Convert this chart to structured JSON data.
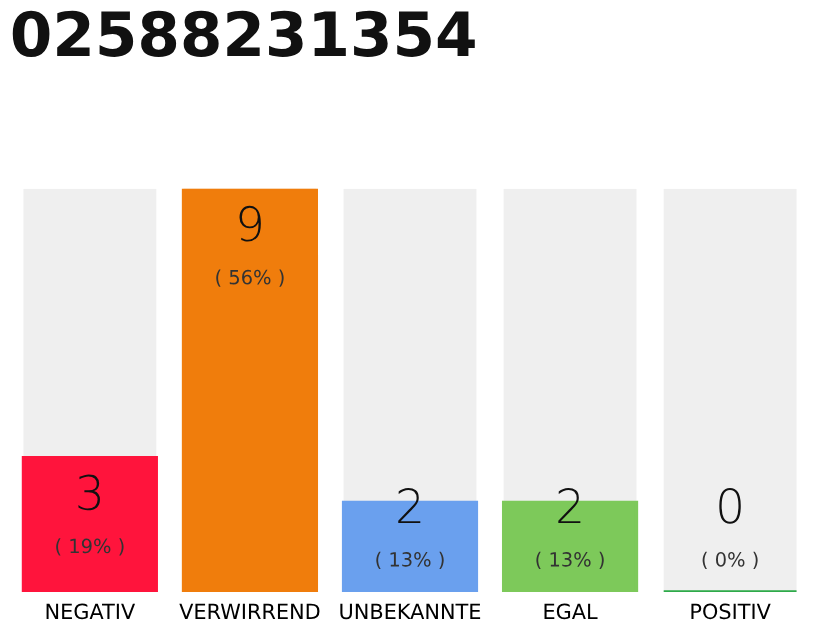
{
  "chart_data": {
    "type": "bar",
    "title": "02588231354",
    "categories": [
      "NEGATIV",
      "VERWIRREND",
      "UNBEKANNTE",
      "EGAL",
      "POSITIV"
    ],
    "values": [
      3,
      9,
      2,
      2,
      0
    ],
    "colors": [
      "#ff143c",
      "#f07d0c",
      "#6aa0ee",
      "#7dc95a",
      "#2eaa4a"
    ],
    "value_labels": [
      "3\n( 19% )",
      "9\n( 56% )",
      "2\n( 13% )",
      "2\n( 13% )",
      "0\n( 0% )"
    ],
    "grid": false,
    "legend": false
  }
}
